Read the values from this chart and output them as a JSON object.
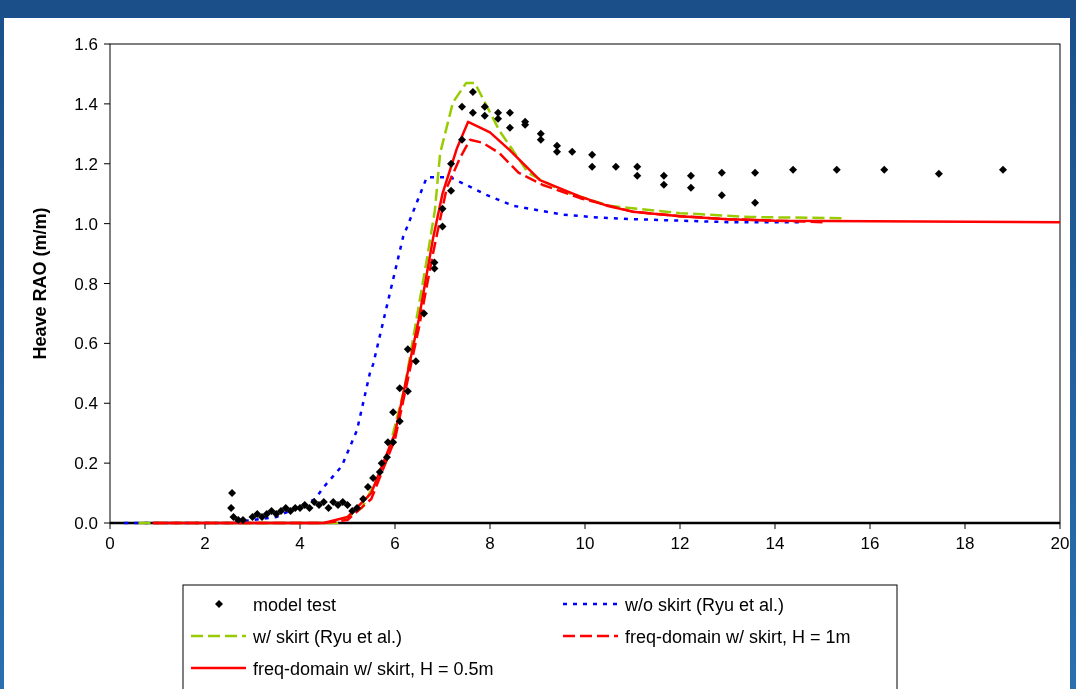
{
  "chart_data": {
    "type": "line",
    "ylabel": "Heave RAO (m/m)",
    "xlim": [
      0,
      20
    ],
    "xticks": [
      0,
      2,
      4,
      6,
      8,
      10,
      12,
      14,
      16,
      18,
      20
    ],
    "ylim": [
      0,
      1.6
    ],
    "yticks": [
      {
        "value": 0,
        "label": "0.0"
      },
      {
        "value": 0.2,
        "label": "0.2"
      },
      {
        "value": 0.4,
        "label": "0.4"
      },
      {
        "value": 0.6,
        "label": "0.6"
      },
      {
        "value": 0.8,
        "label": "0.8"
      },
      {
        "value": 1.0,
        "label": "1.0"
      },
      {
        "value": 1.2,
        "label": "1.2"
      },
      {
        "value": 1.4,
        "label": "1.4"
      },
      {
        "value": 1.6,
        "label": "1.6"
      }
    ],
    "grid": false,
    "legend": "bottom",
    "series": [
      {
        "name": "model test",
        "type": "scatter",
        "marker": "diamond",
        "color": "#000000",
        "x": [
          2.55,
          2.57,
          2.6,
          2.7,
          2.8,
          3.0,
          3.1,
          3.2,
          3.3,
          3.4,
          3.5,
          3.6,
          3.7,
          3.8,
          3.9,
          4.0,
          4.1,
          4.2,
          4.3,
          4.4,
          4.5,
          4.6,
          4.7,
          4.8,
          4.9,
          5.0,
          5.1,
          5.2,
          5.33,
          5.43,
          5.54,
          5.68,
          5.72,
          5.83,
          5.85,
          5.96,
          5.96,
          6.1,
          6.1,
          6.27,
          6.27,
          6.44,
          6.61,
          6.83,
          6.83,
          7.0,
          7.0,
          7.18,
          7.18,
          7.41,
          7.41,
          7.64,
          7.64,
          7.89,
          7.89,
          8.17,
          8.17,
          8.42,
          8.42,
          8.74,
          8.74,
          9.07,
          9.07,
          9.41,
          9.41,
          9.73,
          10.15,
          10.15,
          10.65,
          11.1,
          11.1,
          11.66,
          11.66,
          12.23,
          12.23,
          12.88,
          12.88,
          13.58,
          13.58,
          14.38,
          15.3,
          16.3,
          17.45,
          18.8
        ],
        "values": [
          0.05,
          0.1,
          0.02,
          0.01,
          0.01,
          0.02,
          0.03,
          0.02,
          0.03,
          0.04,
          0.03,
          0.04,
          0.05,
          0.04,
          0.05,
          0.05,
          0.06,
          0.05,
          0.07,
          0.06,
          0.07,
          0.05,
          0.07,
          0.06,
          0.07,
          0.06,
          0.04,
          0.05,
          0.08,
          0.12,
          0.15,
          0.17,
          0.2,
          0.22,
          0.27,
          0.27,
          0.37,
          0.34,
          0.45,
          0.44,
          0.58,
          0.54,
          0.7,
          0.87,
          0.85,
          1.05,
          0.99,
          1.2,
          1.11,
          1.28,
          1.39,
          1.44,
          1.37,
          1.36,
          1.39,
          1.37,
          1.35,
          1.37,
          1.32,
          1.34,
          1.33,
          1.3,
          1.28,
          1.26,
          1.24,
          1.24,
          1.23,
          1.19,
          1.19,
          1.19,
          1.16,
          1.16,
          1.13,
          1.16,
          1.12,
          1.17,
          1.095,
          1.17,
          1.07,
          1.18,
          1.18,
          1.18,
          1.167,
          1.18
        ]
      },
      {
        "name": "w/o skirt (Ryu et al.)",
        "line_style": "dotted",
        "color": "#0000ff",
        "x": [
          0.3,
          2.5,
          3.5,
          4.32,
          4.5,
          4.88,
          5.2,
          5.47,
          5.54,
          6.17,
          6.67,
          7.16,
          7.94,
          8.48,
          9.54,
          10.3,
          11,
          12,
          13,
          14.5
        ],
        "values": [
          0,
          0,
          0.02,
          0.08,
          0.12,
          0.19,
          0.31,
          0.5,
          0.53,
          0.955,
          1.155,
          1.155,
          1.095,
          1.06,
          1.03,
          1.02,
          1.015,
          1.01,
          1.005,
          1.005
        ]
      },
      {
        "name": "w/ skirt (Ryu et al.)",
        "line_style": "dashed",
        "color": "#99cc00",
        "x": [
          0.6,
          4.8,
          5.3,
          5.8,
          6.2,
          6.67,
          6.84,
          6.95,
          7.22,
          7.5,
          7.68,
          7.94,
          8.2,
          8.48,
          8.8,
          9.5,
          10.5,
          12,
          13.5,
          15.4
        ],
        "values": [
          0,
          0,
          0.05,
          0.2,
          0.45,
          0.88,
          1.045,
          1.235,
          1.405,
          1.47,
          1.47,
          1.39,
          1.31,
          1.245,
          1.17,
          1.11,
          1.06,
          1.035,
          1.022,
          1.018
        ]
      },
      {
        "name": "freq-domain w/ skirt, H = 1m",
        "line_style": "dashed",
        "color": "#ff0000",
        "x": [
          0.9,
          4.5,
          5.0,
          5.5,
          6.0,
          6.5,
          6.8,
          7.09,
          7.37,
          7.58,
          7.85,
          8.2,
          8.6,
          9.1,
          9.9,
          10.5,
          11,
          12,
          13,
          14,
          15
        ],
        "values": [
          0,
          0,
          0.01,
          0.08,
          0.28,
          0.65,
          0.9,
          1.12,
          1.22,
          1.28,
          1.27,
          1.235,
          1.17,
          1.13,
          1.085,
          1.06,
          1.04,
          1.025,
          1.015,
          1.01,
          1.005
        ]
      },
      {
        "name": "freq-domain w/ skirt, H = 0.5m",
        "line_style": "solid",
        "color": "#ff0000",
        "x": [
          0.9,
          4.5,
          5.0,
          5.5,
          6.0,
          6.5,
          6.8,
          7.0,
          7.3,
          7.54,
          8.0,
          8.42,
          9.05,
          9.9,
          10.46,
          11,
          12,
          13,
          14,
          20
        ],
        "values": [
          0,
          0,
          0.02,
          0.1,
          0.3,
          0.68,
          0.95,
          1.1,
          1.25,
          1.34,
          1.305,
          1.245,
          1.145,
          1.09,
          1.06,
          1.04,
          1.025,
          1.015,
          1.01,
          1.005
        ]
      }
    ]
  }
}
